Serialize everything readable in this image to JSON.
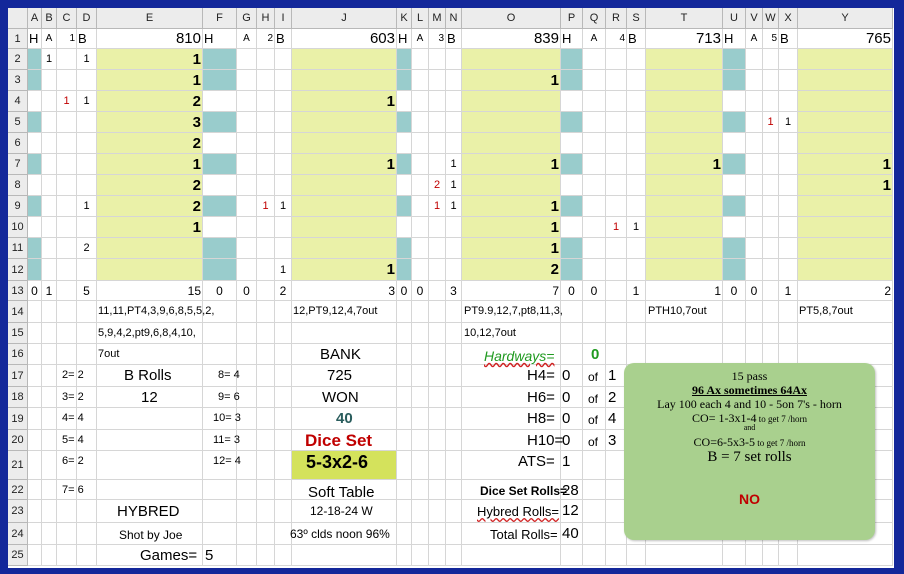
{
  "columns": [
    "A",
    "B",
    "C",
    "D",
    "E",
    "F",
    "G",
    "H",
    "I",
    "J",
    "K",
    "L",
    "M",
    "N",
    "O",
    "P",
    "Q",
    "R",
    "S",
    "T",
    "U",
    "V",
    "W",
    "X",
    "Y"
  ],
  "rows": [
    "1",
    "2",
    "3",
    "4",
    "5",
    "6",
    "7",
    "8",
    "9",
    "10",
    "11",
    "12",
    "13",
    "14",
    "15",
    "16",
    "17",
    "18",
    "19",
    "20",
    "21",
    "22",
    "23",
    "24",
    "25"
  ],
  "colors": {
    "yellow": "#eaf1a8",
    "teal": "#99cccc",
    "dice_set_bg": "#d4e25c",
    "red_text": "#c00000",
    "green_text": "#1f9a1f",
    "note_bg": "#a9d08e"
  },
  "blocks": [
    {
      "total": "810",
      "h_label": "H",
      "a_label": "A",
      "a_count": "1",
      "b_label": "B",
      "values": [
        "1",
        "1",
        "2",
        "3",
        "2",
        "1",
        "2",
        "2",
        "1",
        "",
        "",
        ""
      ],
      "h_marks": [
        "1",
        "",
        "",
        "",
        "",
        "",
        "",
        "",
        "",
        "",
        "",
        ""
      ],
      "a_marks": [
        "",
        "",
        "1",
        "",
        "",
        "",
        "",
        "",
        "",
        "",
        "",
        ""
      ],
      "b_marks": [
        "1",
        "",
        "1",
        "",
        "",
        "",
        "",
        "1",
        "",
        "2",
        "",
        ""
      ],
      "footer": [
        "0",
        "1",
        "",
        "5",
        "15"
      ]
    },
    {
      "total": "603",
      "h_label": "H",
      "a_label": "A",
      "a_count": "2",
      "b_label": "B",
      "values": [
        "",
        "",
        "1",
        "",
        "",
        "1",
        "",
        "",
        "",
        "",
        "1"
      ],
      "h_marks": [
        "",
        "",
        "",
        "",
        "",
        "",
        "",
        "",
        "",
        "",
        ""
      ],
      "a_marks": [
        "",
        "",
        "",
        "",
        "",
        "",
        "",
        "1",
        "",
        "",
        ""
      ],
      "b_marks": [
        "",
        "",
        "",
        "",
        "",
        "",
        "",
        "1",
        "",
        "",
        "1"
      ],
      "footer": [
        "0",
        "0",
        "",
        "2",
        "3"
      ]
    },
    {
      "total": "839",
      "h_label": "H",
      "a_label": "A",
      "a_count": "3",
      "b_label": "B",
      "values": [
        "",
        "1",
        "",
        "",
        "",
        "1",
        "",
        "1",
        "1",
        "1",
        "2"
      ],
      "h_marks": [
        "",
        "",
        "",
        "",
        "",
        "",
        "",
        "",
        "",
        "",
        ""
      ],
      "a_marks": [
        "",
        "",
        "",
        "",
        "",
        "",
        "2",
        "1",
        "",
        "",
        ""
      ],
      "b_marks": [
        "",
        "",
        "",
        "",
        "",
        "1",
        "1",
        "1",
        "",
        "",
        ""
      ],
      "footer": [
        "0",
        "0",
        "",
        "3",
        "7"
      ]
    },
    {
      "total": "713",
      "h_label": "H",
      "a_label": "A",
      "a_count": "4",
      "b_label": "B",
      "values": [
        "",
        "",
        "",
        "",
        "",
        "1",
        "",
        "",
        "",
        "",
        ""
      ],
      "h_marks": [
        "",
        "",
        "",
        "",
        "",
        "",
        "",
        "",
        "",
        "",
        ""
      ],
      "a_marks": [
        "",
        "",
        "",
        "",
        "",
        "",
        "",
        "",
        "1",
        "",
        ""
      ],
      "b_marks": [
        "",
        "",
        "",
        "",
        "",
        "",
        "",
        "",
        "1",
        "",
        ""
      ],
      "footer": [
        "0",
        "0",
        "",
        "1",
        "1"
      ]
    },
    {
      "total": "765",
      "h_label": "H",
      "a_label": "A",
      "a_count": "5",
      "b_label": "B",
      "values": [
        "",
        "",
        "",
        "",
        "",
        "1",
        "1",
        "",
        "",
        "",
        ""
      ],
      "h_marks": [
        "",
        "",
        "",
        "",
        "",
        "",
        "",
        "",
        "",
        "",
        ""
      ],
      "a_marks": [
        "",
        "",
        "",
        "1",
        "",
        "",
        "",
        "",
        "",
        "",
        ""
      ],
      "b_marks": [
        "",
        "",
        "",
        "1",
        "",
        "",
        "",
        "",
        "",
        "",
        ""
      ],
      "footer": [
        "0",
        "0",
        "",
        "1",
        "2"
      ]
    }
  ],
  "sequences": {
    "b1_lines": [
      "11,11,PT4,3,9,6,8,5,5,2,",
      "5,9,4,2,pt9,6,8,4,10,",
      "7out"
    ],
    "b2_line": "12,PT9,12,4,7out",
    "b3_lines": [
      "PT9.9,12,7,pt8,11,3,",
      "10,12,7out"
    ],
    "b4_line": "PTH10,7out",
    "b5_line": "PT5,8,7out"
  },
  "counts": [
    {
      "label": "2=",
      "value": "2"
    },
    {
      "label": "3=",
      "value": "2"
    },
    {
      "label": "4=",
      "value": "4"
    },
    {
      "label": "5=",
      "value": "4"
    },
    {
      "label": "6=",
      "value": "2"
    },
    {
      "label": "7=",
      "value": "6"
    },
    {
      "label": "8=",
      "value": "4"
    },
    {
      "label": "9=",
      "value": "6"
    },
    {
      "label": "10=",
      "value": "3"
    },
    {
      "label": "11=",
      "value": "3"
    },
    {
      "label": "12=",
      "value": "4"
    }
  ],
  "b_rolls": {
    "label": "B Rolls",
    "value": "12"
  },
  "bank": {
    "label": "BANK",
    "value": "725",
    "won_label": "WON",
    "won_value": "40"
  },
  "dice": {
    "label": "Dice Set",
    "value": "5-3x2-6",
    "table": "Soft Table",
    "date": "12-18-24 W",
    "weather": "63º clds noon 96%"
  },
  "hybred": {
    "label": "HYBRED",
    "shooter": "Shot by Joe",
    "games_label": "Games=",
    "games_value": "5"
  },
  "hardways": {
    "title": "Hardways=",
    "title_value": "0",
    "items": [
      {
        "label": "H4=",
        "value": "0",
        "of": "of",
        "total": "1"
      },
      {
        "label": "H6=",
        "value": "0",
        "of": "of",
        "total": "2"
      },
      {
        "label": "H8=",
        "value": "0",
        "of": "of",
        "total": "4"
      },
      {
        "label": "H10=",
        "value": "0",
        "of": "of",
        "total": "3"
      }
    ]
  },
  "ats": {
    "label": "ATS=",
    "value": "1"
  },
  "roll_totals": [
    {
      "label": "Dice Set Rolls=",
      "value": "28"
    },
    {
      "label": "Hybred Rolls=",
      "value": "12"
    },
    {
      "label": "Total Rolls=",
      "value": "40"
    }
  ],
  "note": {
    "line1": "15 pass",
    "line2": "96 Ax sometimes 64Ax",
    "line3": "Lay  100 each 4 and 10 - 5on 7's - horn",
    "line4_main": "CO= 1-3x1-4",
    "line4_small": " to get 7 /horn",
    "line5": "and",
    "line6_main": "CO=6-5x3-5",
    "line6_small": " to get 7 /horn",
    "line7": "B = 7 set rolls",
    "line8": "NO"
  }
}
